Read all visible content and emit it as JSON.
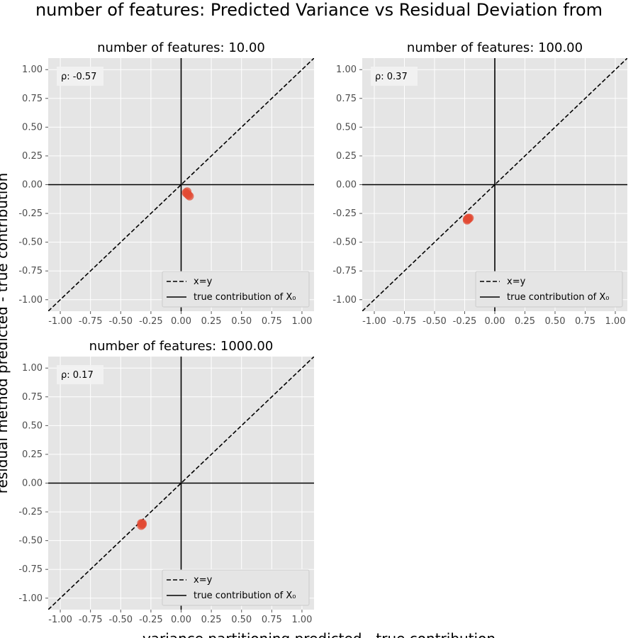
{
  "figure": {
    "title": "number of features: Predicted Variance vs Residual Deviation from",
    "xlabel": "variance partitioning predicted - true contribution",
    "ylabel": "residual method predicted - true contribution"
  },
  "chart_data": [
    {
      "type": "scatter",
      "title": "number of features: 10.00",
      "rho_label": "ρ: -0.57",
      "xlim": [
        -1.1,
        1.1
      ],
      "ylim": [
        -1.1,
        1.1
      ],
      "xticks": [
        "-1.00",
        "-0.75",
        "-0.50",
        "-0.25",
        "0.00",
        "0.25",
        "0.50",
        "0.75",
        "1.00"
      ],
      "yticks": [
        "-1.00",
        "-0.75",
        "-0.50",
        "-0.25",
        "0.00",
        "0.25",
        "0.50",
        "0.75",
        "1.00"
      ],
      "grid": true,
      "legend": {
        "location": "lower right",
        "entries": [
          "x=y",
          "true contribution of X₀"
        ]
      },
      "points": [
        {
          "x": 0.04,
          "y": -0.07
        },
        {
          "x": 0.05,
          "y": -0.08
        },
        {
          "x": 0.06,
          "y": -0.09
        },
        {
          "x": 0.07,
          "y": -0.1
        },
        {
          "x": 0.05,
          "y": -0.06
        }
      ]
    },
    {
      "type": "scatter",
      "title": "number of features: 100.00",
      "rho_label": "ρ: 0.37",
      "xlim": [
        -1.1,
        1.1
      ],
      "ylim": [
        -1.1,
        1.1
      ],
      "xticks": [
        "-1.00",
        "-0.75",
        "-0.50",
        "-0.25",
        "0.00",
        "0.25",
        "0.50",
        "0.75",
        "1.00"
      ],
      "yticks": [
        "-1.00",
        "-0.75",
        "-0.50",
        "-0.25",
        "0.00",
        "0.25",
        "0.50",
        "0.75",
        "1.00"
      ],
      "grid": true,
      "legend": {
        "location": "lower right",
        "entries": [
          "x=y",
          "true contribution of X₀"
        ]
      },
      "points": [
        {
          "x": -0.23,
          "y": -0.3
        },
        {
          "x": -0.22,
          "y": -0.3
        },
        {
          "x": -0.21,
          "y": -0.29
        },
        {
          "x": -0.23,
          "y": -0.31
        },
        {
          "x": -0.22,
          "y": -0.29
        }
      ]
    },
    {
      "type": "scatter",
      "title": "number of features: 1000.00",
      "rho_label": "ρ: 0.17",
      "xlim": [
        -1.1,
        1.1
      ],
      "ylim": [
        -1.1,
        1.1
      ],
      "xticks": [
        "-1.00",
        "-0.75",
        "-0.50",
        "-0.25",
        "0.00",
        "0.25",
        "0.50",
        "0.75",
        "1.00"
      ],
      "yticks": [
        "-1.00",
        "-0.75",
        "-0.50",
        "-0.25",
        "0.00",
        "0.25",
        "0.50",
        "0.75",
        "1.00"
      ],
      "grid": true,
      "legend": {
        "location": "lower right",
        "entries": [
          "x=y",
          "true contribution of X₀"
        ]
      },
      "points": [
        {
          "x": -0.33,
          "y": -0.35
        },
        {
          "x": -0.32,
          "y": -0.36
        },
        {
          "x": -0.33,
          "y": -0.37
        },
        {
          "x": -0.32,
          "y": -0.35
        }
      ]
    }
  ],
  "colors": {
    "axes_bg": "#e5e5e5",
    "grid": "#ffffff",
    "point": "#e24a33",
    "line": "#000000"
  }
}
